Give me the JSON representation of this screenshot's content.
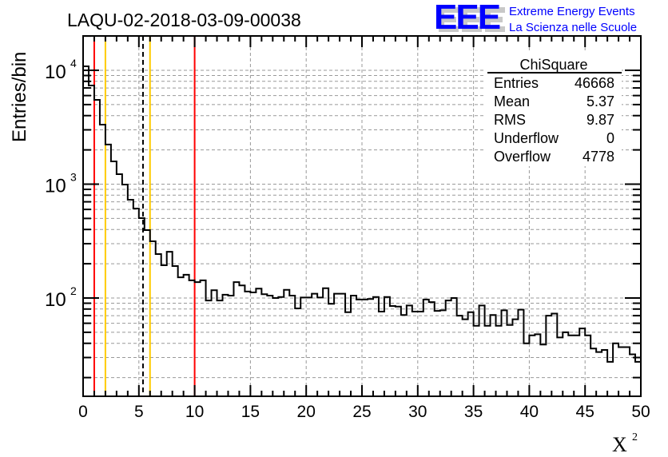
{
  "header": {
    "title": "LAQU-02-2018-03-09-00038",
    "logo_text": "EEE",
    "logo_line1": "Extreme Energy Events",
    "logo_line2": "La Scienza nelle Scuole"
  },
  "stats": {
    "name": "ChiSquare",
    "rows": [
      {
        "label": "Entries",
        "value": "46668"
      },
      {
        "label": "Mean",
        "value": "5.37"
      },
      {
        "label": "RMS",
        "value": "9.87"
      },
      {
        "label": "Underflow",
        "value": "0"
      },
      {
        "label": "Overflow",
        "value": "4778"
      }
    ]
  },
  "colors": {
    "red": "#ff0000",
    "yellow": "#ffcc00",
    "hist": "#000000",
    "logo": "#0000ff",
    "grid": "#999999"
  },
  "chart_data": {
    "type": "histogram",
    "title": "LAQU-02-2018-03-09-00038",
    "xlabel": "X",
    "xlabel_superscript": "2",
    "ylabel": "Entries/bin",
    "xlim": [
      0,
      50
    ],
    "ylim": [
      14,
      19000
    ],
    "yscale": "log",
    "grid": true,
    "bin_width": 0.5,
    "x_ticks": [
      "0",
      "5",
      "10",
      "15",
      "20",
      "25",
      "30",
      "35",
      "40",
      "45",
      "50"
    ],
    "y_ticks": [
      {
        "base": "10",
        "exp": "2",
        "value": 100
      },
      {
        "base": "10",
        "exp": "3",
        "value": 1000
      },
      {
        "base": "10",
        "exp": "4",
        "value": 10000
      }
    ],
    "values": [
      10840,
      7360,
      5500,
      3330,
      2230,
      1585,
      1224,
      991,
      730,
      611,
      503,
      395,
      315,
      243,
      194,
      255,
      191,
      152,
      160,
      143,
      138,
      143,
      95,
      117,
      95,
      107,
      105,
      138,
      129,
      114,
      112,
      121,
      108,
      105,
      100,
      102,
      118,
      105,
      81,
      101,
      101,
      109,
      101,
      122,
      89,
      109,
      109,
      75,
      105,
      97,
      97,
      98,
      102,
      76,
      102,
      85,
      84,
      71,
      86,
      76,
      76,
      97,
      92,
      77,
      78,
      95,
      100,
      70,
      65,
      75,
      57,
      86,
      57,
      71,
      57,
      78,
      58,
      65,
      79,
      40,
      47,
      48,
      39,
      70,
      73,
      45,
      50,
      47,
      47,
      54,
      47,
      36,
      33.5,
      35,
      27.5,
      40,
      37,
      37,
      32,
      27.5
    ],
    "vertical_lines": [
      {
        "x": 1,
        "color": "red",
        "style": "solid"
      },
      {
        "x": 2,
        "color": "yellow",
        "style": "solid"
      },
      {
        "x": 5.37,
        "color": "black",
        "style": "dashed"
      },
      {
        "x": 6,
        "color": "yellow",
        "style": "solid"
      },
      {
        "x": 10,
        "color": "red",
        "style": "solid"
      }
    ]
  }
}
